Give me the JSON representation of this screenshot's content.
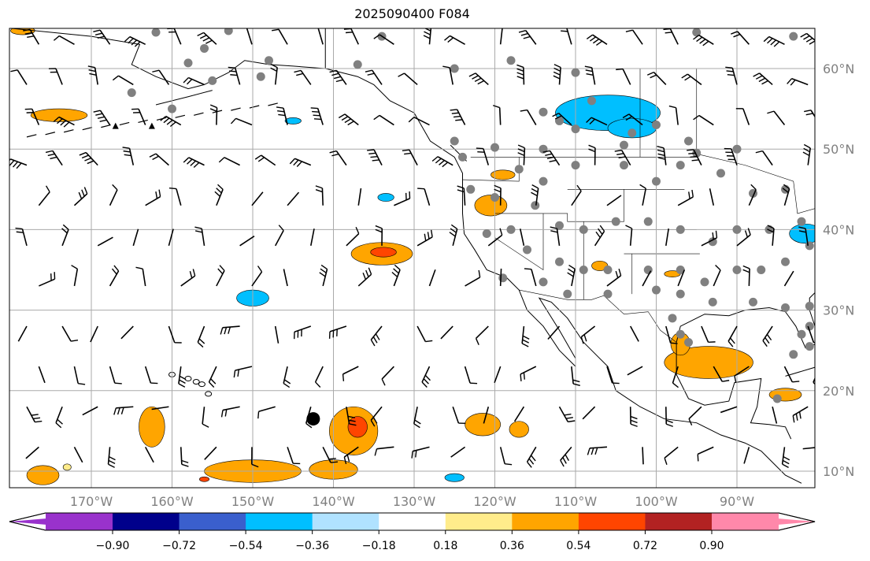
{
  "title": "2025090400 F084",
  "map": {
    "lon_range": [
      -180,
      -80
    ],
    "lat_range": [
      8,
      65
    ],
    "lon_ticks": [
      {
        "v": -170,
        "label": "170°W"
      },
      {
        "v": -160,
        "label": "160°W"
      },
      {
        "v": -150,
        "label": "150°W"
      },
      {
        "v": -140,
        "label": "140°W"
      },
      {
        "v": -130,
        "label": "130°W"
      },
      {
        "v": -120,
        "label": "120°W"
      },
      {
        "v": -110,
        "label": "110°W"
      },
      {
        "v": -100,
        "label": "100°W"
      },
      {
        "v": -90,
        "label": "90°W"
      }
    ],
    "lat_ticks": [
      {
        "v": 60,
        "label": "60°N"
      },
      {
        "v": 50,
        "label": "50°N"
      },
      {
        "v": 40,
        "label": "40°N"
      },
      {
        "v": 30,
        "label": "30°N"
      },
      {
        "v": 20,
        "label": "20°N"
      },
      {
        "v": 10,
        "label": "10°N"
      }
    ],
    "storm_center": {
      "lon": -142.5,
      "lat": 16.5
    },
    "stations": [
      [
        -162,
        64.5
      ],
      [
        -156,
        62.5
      ],
      [
        -153,
        64.7
      ],
      [
        -158,
        60.7
      ],
      [
        -148,
        61
      ],
      [
        -155,
        58.5
      ],
      [
        -149,
        59
      ],
      [
        -160,
        55
      ],
      [
        -165,
        57
      ],
      [
        -134,
        64
      ],
      [
        -137,
        60.5
      ],
      [
        -125,
        60
      ],
      [
        -118,
        61
      ],
      [
        -110,
        59.5
      ],
      [
        -108,
        56
      ],
      [
        -114,
        54.6
      ],
      [
        -112,
        53.5
      ],
      [
        -110,
        52.5
      ],
      [
        -114,
        50
      ],
      [
        -120,
        50.2
      ],
      [
        -124,
        49
      ],
      [
        -125,
        51
      ],
      [
        -103,
        52
      ],
      [
        -100,
        53
      ],
      [
        -104,
        50.5
      ],
      [
        -96,
        51
      ],
      [
        -95,
        49.5
      ],
      [
        -95,
        64.5
      ],
      [
        -83,
        64
      ],
      [
        -90,
        50
      ],
      [
        -84,
        45
      ],
      [
        -88,
        44.5
      ],
      [
        -92,
        47
      ],
      [
        -97,
        48
      ],
      [
        -100,
        46
      ],
      [
        -104,
        48
      ],
      [
        -110,
        48
      ],
      [
        -114,
        46
      ],
      [
        -117,
        47.5
      ],
      [
        -123,
        45
      ],
      [
        -120,
        44
      ],
      [
        -115,
        43
      ],
      [
        -112,
        40.5
      ],
      [
        -109,
        40
      ],
      [
        -105,
        41
      ],
      [
        -101,
        41
      ],
      [
        -97,
        40
      ],
      [
        -93,
        38.5
      ],
      [
        -90,
        40
      ],
      [
        -86,
        40
      ],
      [
        -82,
        41
      ],
      [
        -81,
        38
      ],
      [
        -84,
        36
      ],
      [
        -87,
        35
      ],
      [
        -90,
        35
      ],
      [
        -94,
        33.5
      ],
      [
        -97,
        35
      ],
      [
        -101,
        35
      ],
      [
        -106,
        35
      ],
      [
        -109,
        35
      ],
      [
        -112,
        36
      ],
      [
        -116,
        37.5
      ],
      [
        -118,
        40
      ],
      [
        -121,
        39.5
      ],
      [
        -119,
        34
      ],
      [
        -114,
        33.5
      ],
      [
        -111,
        32
      ],
      [
        -106,
        32
      ],
      [
        -100,
        32.5
      ],
      [
        -97,
        32
      ],
      [
        -93,
        31
      ],
      [
        -88,
        31
      ],
      [
        -84,
        30.3
      ],
      [
        -81,
        30.5
      ],
      [
        -81,
        28
      ],
      [
        -82,
        27
      ],
      [
        -83,
        24.5
      ],
      [
        -98,
        29
      ],
      [
        -97,
        27
      ],
      [
        -96,
        26
      ],
      [
        -85,
        19
      ],
      [
        -81,
        25.5
      ]
    ],
    "colorbar": {
      "colors": [
        "#9932CC",
        "#00008B",
        "#3A5FCD",
        "#00BFFF",
        "#B0E2FF",
        "#FFFFFF",
        "#FFEC8B",
        "#FFA500",
        "#FF4500",
        "#B22222",
        "#FF88AA"
      ],
      "labels": [
        "−0.90",
        "−0.72",
        "−0.54",
        "−0.36",
        "−0.18",
        "0.18",
        "0.36",
        "0.54",
        "0.72",
        "0.90"
      ]
    }
  }
}
